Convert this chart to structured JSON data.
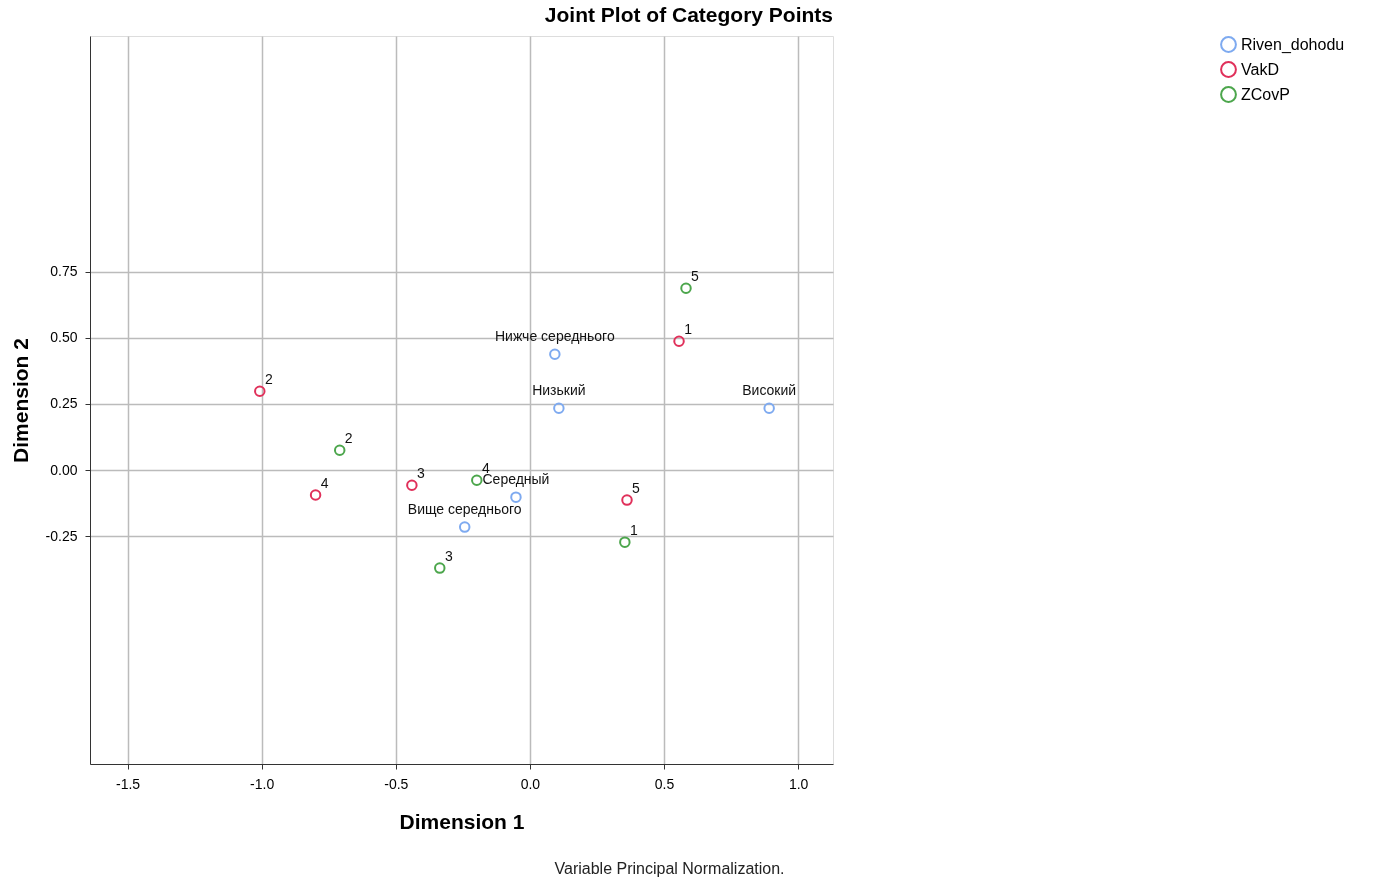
{
  "chart_data": {
    "type": "scatter",
    "title": "Joint Plot of Category Points",
    "xlabel": "Dimension 1",
    "ylabel": "Dimension 2",
    "annotations": [
      "Variable Principal Normalization.",
      {
        "text": "Нижче середнього",
        "x": 0.093,
        "y": 0.438
      },
      {
        "text": "Низький",
        "x": 0.108,
        "y": 0.234
      },
      {
        "text": "Високий",
        "x": 0.892,
        "y": 0.234
      },
      {
        "text": "Середный",
        "x": -0.052,
        "y": -0.102
      },
      {
        "text": "Вище середнього",
        "x": -0.243,
        "y": -0.215
      },
      {
        "text": "1",
        "x": 0.556,
        "y": 0.487
      },
      {
        "text": "2",
        "x": -1.007,
        "y": 0.298
      },
      {
        "text": "3",
        "x": -0.44,
        "y": -0.057
      },
      {
        "text": "4",
        "x": -0.799,
        "y": -0.094
      },
      {
        "text": "5",
        "x": 0.362,
        "y": -0.113
      },
      {
        "text": "1",
        "x": 0.354,
        "y": -0.272
      },
      {
        "text": "2",
        "x": -0.709,
        "y": 0.075
      },
      {
        "text": "3",
        "x": -0.336,
        "y": -0.37
      },
      {
        "text": "4",
        "x": -0.198,
        "y": -0.038
      },
      {
        "text": "5",
        "x": 0.582,
        "y": 0.687
      }
    ],
    "xlim": [
      -1.64,
      1.13
    ],
    "ylim": [
      -1.11,
      1.64
    ],
    "xticks": [
      -1.5,
      {
        "value": -1,
        "label": "-1.0"
      },
      -0.5,
      {
        "value": 0,
        "label": "0.0"
      },
      0.5,
      {
        "value": 1,
        "label": "1.0"
      }
    ],
    "yticks": [
      -0.25,
      {
        "value": 0,
        "label": "0.00"
      },
      0.25,
      {
        "value": 0.5,
        "label": "0.50"
      },
      0.75
    ],
    "grid": true,
    "legend": "top right",
    "marker": "circle",
    "series": [
      {
        "name": "Riven_dohodu",
        "color": "#7eaaf0",
        "x": [
          0.093,
          0.108,
          0.892,
          -0.052,
          -0.243
        ],
        "values": [
          0.438,
          0.234,
          0.234,
          -0.102,
          -0.215
        ]
      },
      {
        "name": "VakD",
        "color": "#e0305a",
        "x": [
          0.556,
          -1.007,
          -0.44,
          -0.799,
          0.362
        ],
        "values": [
          0.487,
          0.298,
          -0.057,
          -0.094,
          -0.113
        ]
      },
      {
        "name": "ZCovP",
        "color": "#4ca64c",
        "x": [
          0.354,
          -0.709,
          -0.336,
          -0.198,
          0.582
        ],
        "values": [
          -0.272,
          0.075,
          -0.37,
          -0.038,
          0.687
        ]
      }
    ]
  }
}
